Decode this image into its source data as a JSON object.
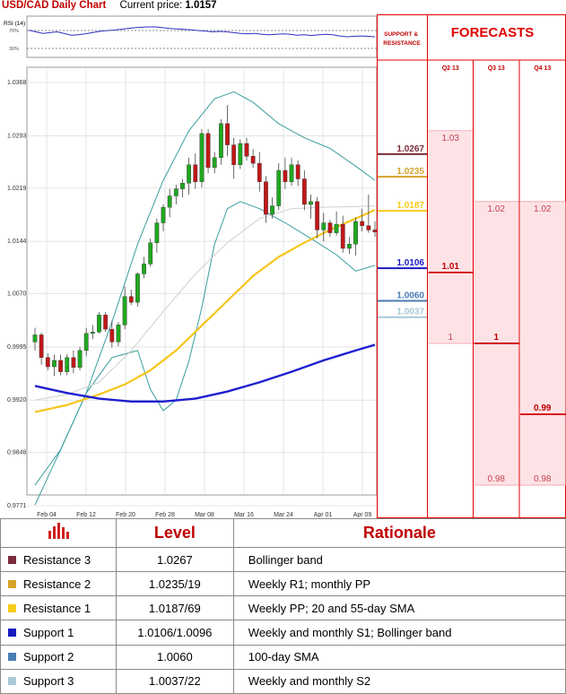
{
  "header": {
    "title": "USD/CAD Daily Chart",
    "current_price_label": "Current price:",
    "current_price_value": "1.0157"
  },
  "rsi": {
    "label": "RSI (14)",
    "level_high": "70%",
    "level_low": "30%",
    "values": [
      66,
      62,
      58,
      60,
      62,
      58,
      54,
      55,
      57,
      60,
      63,
      65,
      66,
      68,
      70,
      72,
      73,
      74,
      74,
      72,
      70,
      69,
      68,
      67,
      65,
      64,
      62,
      63,
      62,
      60,
      58,
      57,
      58,
      56,
      55,
      56,
      57,
      56,
      54,
      55,
      53,
      55,
      56,
      55,
      52,
      50,
      51,
      52,
      51,
      50
    ]
  },
  "chart_data": {
    "type": "candlestick",
    "x_ticks": [
      "Feb 04",
      "Feb 12",
      "Feb 20",
      "Feb 28",
      "Mar 08",
      "Mar 16",
      "Mar 24",
      "Apr 01",
      "Apr 09"
    ],
    "y_ticks": [
      "1.0368",
      "1.0293",
      "1.0219",
      "1.0144",
      "1.0070",
      "0.9995",
      "0.9920",
      "0.9846",
      "0.9771"
    ],
    "ylim": [
      0.9771,
      1.0368
    ],
    "candles": [
      {
        "o": 1.0002,
        "h": 1.0022,
        "l": 0.999,
        "c": 1.0012
      },
      {
        "o": 1.0012,
        "h": 1.0015,
        "l": 0.997,
        "c": 0.998
      },
      {
        "o": 0.998,
        "h": 0.9986,
        "l": 0.9962,
        "c": 0.9967
      },
      {
        "o": 0.9967,
        "h": 0.9984,
        "l": 0.9954,
        "c": 0.9976
      },
      {
        "o": 0.9976,
        "h": 0.9984,
        "l": 0.9955,
        "c": 0.996
      },
      {
        "o": 0.996,
        "h": 0.9985,
        "l": 0.9955,
        "c": 0.998
      },
      {
        "o": 0.998,
        "h": 0.999,
        "l": 0.9958,
        "c": 0.9966
      },
      {
        "o": 0.9966,
        "h": 0.9995,
        "l": 0.9962,
        "c": 0.999
      },
      {
        "o": 0.999,
        "h": 1.0022,
        "l": 0.9982,
        "c": 1.0014
      },
      {
        "o": 1.0014,
        "h": 1.0026,
        "l": 1.0006,
        "c": 1.0016
      },
      {
        "o": 1.0016,
        "h": 1.0044,
        "l": 1.0014,
        "c": 1.004
      },
      {
        "o": 1.004,
        "h": 1.0044,
        "l": 1.0016,
        "c": 1.002
      },
      {
        "o": 1.002,
        "h": 1.0032,
        "l": 0.9994,
        "c": 1.0002
      },
      {
        "o": 1.0002,
        "h": 1.003,
        "l": 0.9996,
        "c": 1.0026
      },
      {
        "o": 1.0026,
        "h": 1.008,
        "l": 1.002,
        "c": 1.0066
      },
      {
        "o": 1.0066,
        "h": 1.0076,
        "l": 1.0054,
        "c": 1.0058
      },
      {
        "o": 1.0058,
        "h": 1.01,
        "l": 1.0052,
        "c": 1.0098
      },
      {
        "o": 1.0098,
        "h": 1.0122,
        "l": 1.0092,
        "c": 1.0112
      },
      {
        "o": 1.0112,
        "h": 1.0148,
        "l": 1.0108,
        "c": 1.0142
      },
      {
        "o": 1.0142,
        "h": 1.0176,
        "l": 1.0128,
        "c": 1.017
      },
      {
        "o": 1.017,
        "h": 1.0196,
        "l": 1.0158,
        "c": 1.0192
      },
      {
        "o": 1.0192,
        "h": 1.0218,
        "l": 1.0178,
        "c": 1.0208
      },
      {
        "o": 1.0208,
        "h": 1.0224,
        "l": 1.0196,
        "c": 1.0218
      },
      {
        "o": 1.0218,
        "h": 1.0232,
        "l": 1.0206,
        "c": 1.0226
      },
      {
        "o": 1.0226,
        "h": 1.0262,
        "l": 1.021,
        "c": 1.0252
      },
      {
        "o": 1.0252,
        "h": 1.0268,
        "l": 1.0218,
        "c": 1.0228
      },
      {
        "o": 1.0228,
        "h": 1.0302,
        "l": 1.022,
        "c": 1.0296
      },
      {
        "o": 1.0296,
        "h": 1.0302,
        "l": 1.024,
        "c": 1.0248
      },
      {
        "o": 1.0248,
        "h": 1.027,
        "l": 1.024,
        "c": 1.0262
      },
      {
        "o": 1.0262,
        "h": 1.0316,
        "l": 1.0252,
        "c": 1.031
      },
      {
        "o": 1.031,
        "h": 1.0336,
        "l": 1.0264,
        "c": 1.028
      },
      {
        "o": 1.028,
        "h": 1.029,
        "l": 1.0232,
        "c": 1.0252
      },
      {
        "o": 1.0252,
        "h": 1.0288,
        "l": 1.0246,
        "c": 1.0282
      },
      {
        "o": 1.0282,
        "h": 1.029,
        "l": 1.0258,
        "c": 1.0264
      },
      {
        "o": 1.0264,
        "h": 1.0274,
        "l": 1.0248,
        "c": 1.0254
      },
      {
        "o": 1.0254,
        "h": 1.027,
        "l": 1.0214,
        "c": 1.0228
      },
      {
        "o": 1.0228,
        "h": 1.0236,
        "l": 1.017,
        "c": 1.0182
      },
      {
        "o": 1.0182,
        "h": 1.0206,
        "l": 1.0176,
        "c": 1.0194
      },
      {
        "o": 1.0194,
        "h": 1.0254,
        "l": 1.0188,
        "c": 1.0244
      },
      {
        "o": 1.0244,
        "h": 1.0262,
        "l": 1.0218,
        "c": 1.0228
      },
      {
        "o": 1.0228,
        "h": 1.0262,
        "l": 1.0222,
        "c": 1.0252
      },
      {
        "o": 1.0252,
        "h": 1.0258,
        "l": 1.0222,
        "c": 1.0232
      },
      {
        "o": 1.0232,
        "h": 1.0244,
        "l": 1.0188,
        "c": 1.0196
      },
      {
        "o": 1.0196,
        "h": 1.021,
        "l": 1.0176,
        "c": 1.02
      },
      {
        "o": 1.02,
        "h": 1.0206,
        "l": 1.0148,
        "c": 1.016
      },
      {
        "o": 1.016,
        "h": 1.0184,
        "l": 1.0144,
        "c": 1.017
      },
      {
        "o": 1.017,
        "h": 1.0174,
        "l": 1.015,
        "c": 1.0156
      },
      {
        "o": 1.0156,
        "h": 1.0186,
        "l": 1.0152,
        "c": 1.0168
      },
      {
        "o": 1.0168,
        "h": 1.018,
        "l": 1.0128,
        "c": 1.0134
      },
      {
        "o": 1.0134,
        "h": 1.015,
        "l": 1.0126,
        "c": 1.014
      },
      {
        "o": 1.014,
        "h": 1.0178,
        "l": 1.0124,
        "c": 1.0172
      },
      {
        "o": 1.0172,
        "h": 1.019,
        "l": 1.0158,
        "c": 1.0166
      },
      {
        "o": 1.0166,
        "h": 1.021,
        "l": 1.0156,
        "c": 1.016
      },
      {
        "o": 1.016,
        "h": 1.0172,
        "l": 1.015,
        "c": 1.0157
      }
    ],
    "sma_20": [
      [
        0,
        0.992
      ],
      [
        5,
        0.9928
      ],
      [
        10,
        0.9945
      ],
      [
        15,
        0.999
      ],
      [
        20,
        1.0045
      ],
      [
        25,
        1.0098
      ],
      [
        30,
        1.0142
      ],
      [
        35,
        1.0176
      ],
      [
        40,
        1.019
      ],
      [
        45,
        1.0192
      ],
      [
        50,
        1.0193
      ],
      [
        53,
        1.0194
      ]
    ],
    "sma_55": [
      [
        0,
        0.9903
      ],
      [
        5,
        0.9913
      ],
      [
        10,
        0.9928
      ],
      [
        14,
        0.9942
      ],
      [
        18,
        0.9962
      ],
      [
        22,
        0.999
      ],
      [
        26,
        1.0025
      ],
      [
        30,
        1.006
      ],
      [
        34,
        1.0095
      ],
      [
        38,
        1.0122
      ],
      [
        42,
        1.0142
      ],
      [
        46,
        1.016
      ],
      [
        50,
        1.0176
      ],
      [
        53,
        1.0188
      ]
    ],
    "sma_100": [
      [
        0,
        0.994
      ],
      [
        5,
        0.993
      ],
      [
        10,
        0.9922
      ],
      [
        15,
        0.9918
      ],
      [
        20,
        0.9918
      ],
      [
        25,
        0.9922
      ],
      [
        30,
        0.9932
      ],
      [
        35,
        0.9945
      ],
      [
        40,
        0.996
      ],
      [
        45,
        0.9976
      ],
      [
        50,
        0.999
      ],
      [
        53,
        0.9998
      ]
    ],
    "bb_upper": [
      [
        0,
        0.98
      ],
      [
        4,
        0.985
      ],
      [
        8,
        0.993
      ],
      [
        12,
        1.003
      ],
      [
        16,
        1.014
      ],
      [
        20,
        1.023
      ],
      [
        24,
        1.03
      ],
      [
        28,
        1.0345
      ],
      [
        31,
        1.0355
      ],
      [
        34,
        1.034
      ],
      [
        38,
        1.031
      ],
      [
        42,
        1.029
      ],
      [
        46,
        1.0275
      ],
      [
        50,
        1.025
      ],
      [
        53,
        1.023
      ]
    ],
    "bb_lower": [
      [
        0,
        0.9772
      ],
      [
        4,
        0.985
      ],
      [
        8,
        0.993
      ],
      [
        12,
        0.998
      ],
      [
        16,
        0.999
      ],
      [
        18,
        0.9935
      ],
      [
        20,
        0.9905
      ],
      [
        22,
        0.992
      ],
      [
        24,
        0.9975
      ],
      [
        26,
        1.005
      ],
      [
        28,
        1.014
      ],
      [
        30,
        1.019
      ],
      [
        32,
        1.02
      ],
      [
        35,
        1.019
      ],
      [
        39,
        1.017
      ],
      [
        43,
        1.0148
      ],
      [
        47,
        1.0125
      ],
      [
        50,
        1.0102
      ],
      [
        53,
        1.011
      ]
    ],
    "levels": [
      {
        "label": "1.0267",
        "value": 1.0267,
        "color": "#7b2b3b"
      },
      {
        "label": "1.0235",
        "value": 1.0235,
        "color": "#d6a32c"
      },
      {
        "label": "1.0187",
        "value": 1.0187,
        "color": "#f5cc1a"
      },
      {
        "label": "1.0106",
        "value": 1.0106,
        "color": "#1a1abf"
      },
      {
        "label": "1.0060",
        "value": 1.006,
        "color": "#4a7cb4"
      },
      {
        "label": "1.0037",
        "value": 1.0037,
        "color": "#a9c8d8"
      }
    ]
  },
  "forecasts": {
    "title": "FORECASTS",
    "sr_header": "SUPPORT & RESISTANCE",
    "quarters": [
      {
        "label": "Q2 13",
        "top": "1.03",
        "top_value": 1.03,
        "mid": "1.01",
        "mid_value": 1.01,
        "low": "1",
        "low_value": 1.0
      },
      {
        "label": "Q3 13",
        "top": "1.02",
        "top_value": 1.02,
        "mid": "1",
        "mid_value": 1.0,
        "low": "0.98",
        "low_value": 0.98
      },
      {
        "label": "Q4 13",
        "top": "1.02",
        "top_value": 1.02,
        "mid": "0.99",
        "mid_value": 0.99,
        "low": "0.98",
        "low_value": 0.98
      }
    ]
  },
  "table": {
    "headers": {
      "level": "Level",
      "rationale": "Rationale"
    },
    "header_icon": "bar-chart-icon",
    "rows": [
      {
        "label": "Resistance 3",
        "color": "#7b2b3b",
        "value": "1.0267",
        "rationale": "Bollinger band"
      },
      {
        "label": "Resistance 2",
        "color": "#d6a32c",
        "value": "1.0235/19",
        "rationale": "Weekly R1; monthly PP"
      },
      {
        "label": "Resistance 1",
        "color": "#f5cc1a",
        "value": "1.0187/69",
        "rationale": "Weekly PP; 20 and 55-day SMA"
      },
      {
        "label": "Support 1",
        "color": "#1a1abf",
        "value": "1.0106/1.0096",
        "rationale": "Weekly and monthly S1; Bollinger band"
      },
      {
        "label": "Support 2",
        "color": "#4a7cb4",
        "value": "1.0060",
        "rationale": "100-day SMA"
      },
      {
        "label": "Support 3",
        "color": "#a9c8d8",
        "value": "1.0037/22",
        "rationale": "Weekly and monthly S2"
      }
    ]
  }
}
